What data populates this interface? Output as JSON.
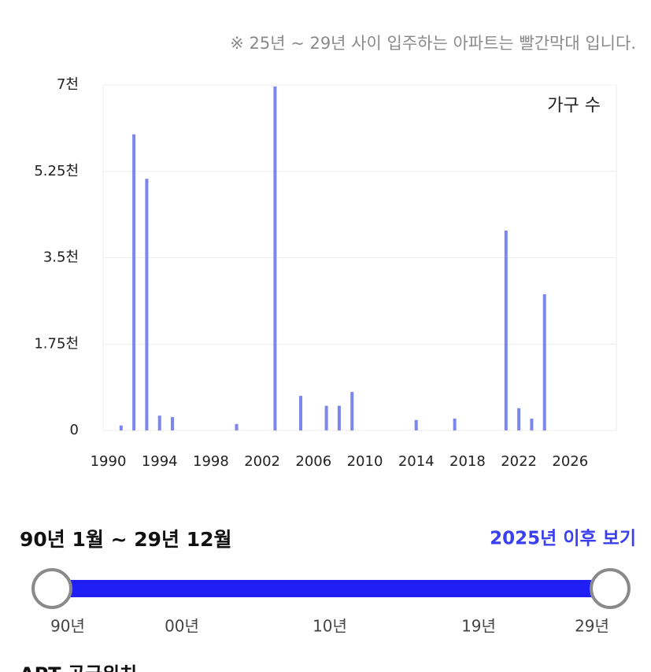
{
  "header": {
    "note": "※ 25년 ~ 29년 사이 입주하는 아파트는 빨간막대 입니다."
  },
  "chart_data": {
    "type": "bar",
    "x": [
      1991,
      1992,
      1993,
      1994,
      1995,
      2000,
      2003,
      2005,
      2007,
      2008,
      2009,
      2014,
      2017,
      2021,
      2022,
      2023,
      2024
    ],
    "series": [
      {
        "name": "가구 수",
        "color": "#7b86ee",
        "values": [
          100,
          6000,
          5100,
          300,
          270,
          130,
          6970,
          700,
          500,
          500,
          780,
          210,
          240,
          4050,
          450,
          240,
          2760
        ]
      }
    ],
    "xlim": [
      1989.6,
      2029.6
    ],
    "xticks": [
      1990,
      1994,
      1998,
      2002,
      2006,
      2010,
      2014,
      2018,
      2022,
      2026
    ],
    "ylim": [
      0,
      7000
    ],
    "yticks": [
      0,
      {
        "value": 1750,
        "label": "1.75천"
      },
      {
        "value": 3500,
        "label": "3.5천"
      },
      {
        "value": 5250,
        "label": "5.25천"
      },
      {
        "value": 7000,
        "label": "7천"
      }
    ],
    "grid": true,
    "legend": "top-right"
  },
  "filter": {
    "range_label": "90년 1월 ~ 29년 12월",
    "link": "2025년 이후 보기"
  },
  "slider": {
    "labels": [
      "90년",
      "00년",
      "10년",
      "19년",
      "29년"
    ]
  },
  "section": {
    "title": "APT 공급위치"
  }
}
